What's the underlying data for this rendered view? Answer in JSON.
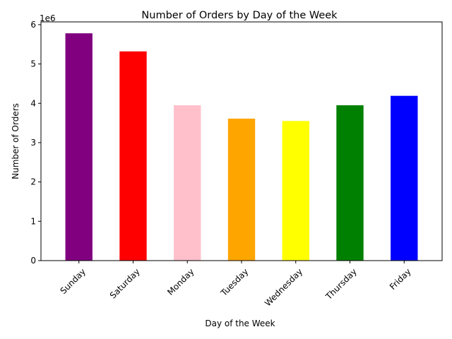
{
  "chart_data": {
    "type": "bar",
    "title": "Number of Orders by Day of the Week",
    "xlabel": "Day of the Week",
    "ylabel": "Number of Orders",
    "y_offset_label": "1e6",
    "categories": [
      "Sunday",
      "Saturday",
      "Monday",
      "Tuesday",
      "Wednesday",
      "Thursday",
      "Friday"
    ],
    "values": [
      5.78,
      5.32,
      3.95,
      3.61,
      3.55,
      3.95,
      4.19
    ],
    "value_multiplier": 1000000,
    "colors": [
      "#800080",
      "#ff0000",
      "#ffc0cb",
      "#ffa500",
      "#ffff00",
      "#008000",
      "#0000ff"
    ],
    "ylim": [
      0,
      6.07
    ],
    "yticks": [
      0,
      1,
      2,
      3,
      4,
      5,
      6
    ],
    "x_tick_rotation_deg": 45,
    "grid": false,
    "legend": "none"
  }
}
